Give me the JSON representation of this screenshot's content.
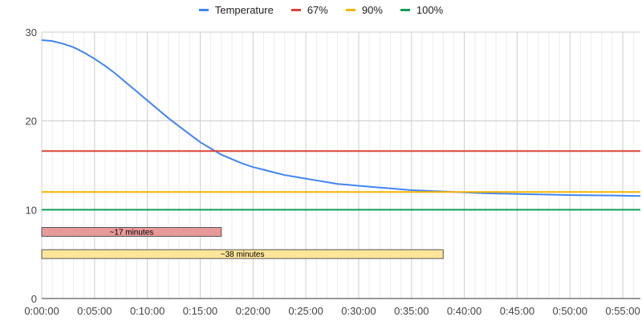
{
  "chart_data": {
    "type": "line",
    "legend_position": "top",
    "xlabel": "",
    "ylabel": "",
    "xlim": [
      0,
      3400
    ],
    "ylim": [
      0,
      30
    ],
    "grid": true,
    "x_ticks": [
      {
        "t": 0,
        "label": "0:00:00"
      },
      {
        "t": 300,
        "label": "0:05:00"
      },
      {
        "t": 600,
        "label": "0:10:00"
      },
      {
        "t": 900,
        "label": "0:15:00"
      },
      {
        "t": 1200,
        "label": "0:20:00"
      },
      {
        "t": 1500,
        "label": "0:25:00"
      },
      {
        "t": 1800,
        "label": "0:30:00"
      },
      {
        "t": 2100,
        "label": "0:35:00"
      },
      {
        "t": 2400,
        "label": "0:40:00"
      },
      {
        "t": 2700,
        "label": "0:45:00"
      },
      {
        "t": 3000,
        "label": "0:50:00"
      },
      {
        "t": 3300,
        "label": "0:55:00"
      }
    ],
    "y_ticks": [
      0,
      10,
      20,
      30
    ],
    "series": [
      {
        "name": "Temperature",
        "color": "#4285f4",
        "x": [
          0,
          60,
          120,
          180,
          240,
          300,
          360,
          420,
          480,
          540,
          600,
          660,
          720,
          780,
          840,
          900,
          960,
          1020,
          1080,
          1140,
          1200,
          1260,
          1320,
          1380,
          1440,
          1500,
          1560,
          1620,
          1680,
          1740,
          1800,
          1860,
          1920,
          1980,
          2040,
          2100,
          2160,
          2220,
          2280,
          2340,
          2400,
          2520,
          2640,
          2760,
          2880,
          3000,
          3120,
          3240,
          3400
        ],
        "y": [
          29.1,
          29.0,
          28.7,
          28.3,
          27.7,
          27.0,
          26.2,
          25.3,
          24.3,
          23.3,
          22.3,
          21.3,
          20.3,
          19.4,
          18.5,
          17.6,
          16.9,
          16.2,
          15.7,
          15.2,
          14.8,
          14.5,
          14.2,
          13.9,
          13.7,
          13.5,
          13.3,
          13.1,
          12.9,
          12.8,
          12.7,
          12.6,
          12.5,
          12.4,
          12.3,
          12.2,
          12.15,
          12.1,
          12.05,
          12.0,
          11.95,
          11.85,
          11.8,
          11.75,
          11.7,
          11.65,
          11.62,
          11.6,
          11.55
        ]
      },
      {
        "name": "67%",
        "color": "#db4437",
        "constant": 16.6
      },
      {
        "name": "90%",
        "color": "#f4b400",
        "constant": 12.0
      },
      {
        "name": "100%",
        "color": "#0f9d58",
        "constant": 10.0
      }
    ],
    "annotations": [
      {
        "label": "~17 minutes",
        "start": 0,
        "end": 1020,
        "y": 7.5,
        "fill": "#ea9999",
        "stroke": "#555555"
      },
      {
        "label": "~38 minutes",
        "start": 0,
        "end": 2280,
        "y": 5.0,
        "fill": "#ffe599",
        "stroke": "#555555"
      }
    ]
  }
}
